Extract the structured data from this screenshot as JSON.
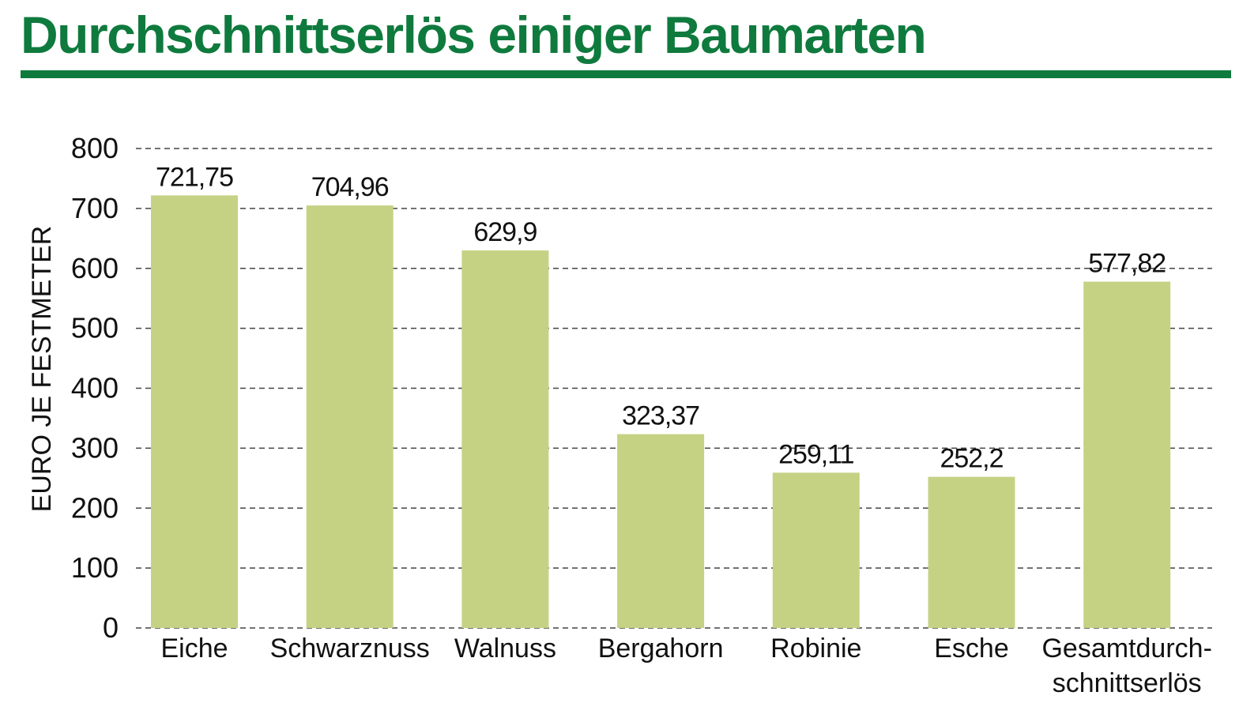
{
  "title": "Durchschnittserlös einiger Baumarten",
  "colors": {
    "accent": "#0f7a3d",
    "bar": "#c5d284",
    "grid": "#444444"
  },
  "chart_data": {
    "type": "bar",
    "title": "Durchschnittserlös einiger Baumarten",
    "xlabel": "",
    "ylabel": "EURO JE FESTMETER",
    "ylim": [
      0,
      800
    ],
    "yticks": [
      0,
      100,
      200,
      300,
      400,
      500,
      600,
      700,
      800
    ],
    "grid": true,
    "categories": [
      [
        "Eiche"
      ],
      [
        "Schwarznuss"
      ],
      [
        "Walnuss"
      ],
      [
        "Bergahorn"
      ],
      [
        "Robinie"
      ],
      [
        "Esche"
      ],
      [
        "Gesamtdurch-",
        "schnittserlös"
      ]
    ],
    "values": [
      721.75,
      704.96,
      629.9,
      323.37,
      259.11,
      252.2,
      577.82
    ],
    "value_labels": [
      "721,75",
      "704,96",
      "629,9",
      "323,37",
      "259,11",
      "252,2",
      "577,82"
    ]
  }
}
